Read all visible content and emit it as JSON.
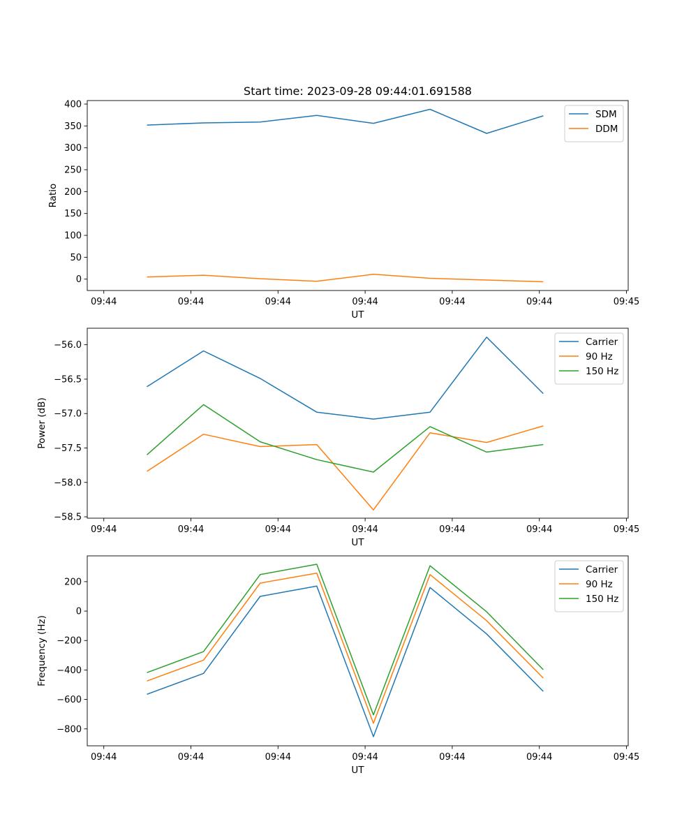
{
  "figure": {
    "title": "Start time: 2023-09-28 09:44:01.691588"
  },
  "colors": {
    "blue": "#1f77b4",
    "orange": "#ff7f0e",
    "green": "#2ca02c"
  },
  "chart_data": [
    {
      "type": "line",
      "title": "Start time: 2023-09-28 09:44:01.691588",
      "xlabel": "UT",
      "ylabel": "Ratio",
      "x_tick_labels": [
        "09:44",
        "09:44",
        "09:44",
        "09:44",
        "09:44",
        "09:44",
        "09:45"
      ],
      "xlim": [
        -0.31,
        5.9
      ],
      "x_ticks": [
        -0.12,
        0.88,
        1.88,
        2.88,
        3.88,
        4.88,
        5.88
      ],
      "x": [
        0.375,
        1.025,
        1.675,
        2.325,
        2.975,
        3.625,
        4.275,
        4.925
      ],
      "ylim": [
        -26,
        408
      ],
      "y_ticks": [
        0,
        50,
        100,
        150,
        200,
        250,
        300,
        350,
        400
      ],
      "y_tick_labels": [
        "0",
        "50",
        "100",
        "150",
        "200",
        "250",
        "300",
        "350",
        "400"
      ],
      "legend": "upper right",
      "series": [
        {
          "name": "SDM",
          "color": "#1f77b4",
          "values": [
            352,
            357,
            359,
            374,
            356,
            388,
            333,
            373
          ]
        },
        {
          "name": "DDM",
          "color": "#ff7f0e",
          "values": [
            5,
            9,
            1,
            -5,
            11,
            2,
            -2,
            -6
          ]
        }
      ]
    },
    {
      "type": "line",
      "xlabel": "UT",
      "ylabel": "Power (dB)",
      "x_tick_labels": [
        "09:44",
        "09:44",
        "09:44",
        "09:44",
        "09:44",
        "09:44",
        "09:45"
      ],
      "xlim": [
        -0.31,
        5.9
      ],
      "x_ticks": [
        -0.12,
        0.88,
        1.88,
        2.88,
        3.88,
        4.88,
        5.88
      ],
      "x": [
        0.375,
        1.025,
        1.675,
        2.325,
        2.975,
        3.625,
        4.275,
        4.925
      ],
      "ylim": [
        -58.52,
        -55.76
      ],
      "y_ticks": [
        -58.5,
        -58.0,
        -57.5,
        -57.0,
        -56.5,
        -56.0
      ],
      "y_tick_labels": [
        "−58.5",
        "−58.0",
        "−57.5",
        "−57.0",
        "−56.5",
        "−56.0"
      ],
      "legend": "upper right",
      "series": [
        {
          "name": "Carrier",
          "color": "#1f77b4",
          "values": [
            -56.61,
            -56.09,
            -56.49,
            -56.98,
            -57.08,
            -56.98,
            -55.89,
            -56.71
          ]
        },
        {
          "name": "90 Hz",
          "color": "#ff7f0e",
          "values": [
            -57.84,
            -57.3,
            -57.48,
            -57.45,
            -58.4,
            -57.28,
            -57.42,
            -57.18
          ]
        },
        {
          "name": "150 Hz",
          "color": "#2ca02c",
          "values": [
            -57.6,
            -56.87,
            -57.41,
            -57.67,
            -57.85,
            -57.19,
            -57.56,
            -57.45
          ]
        }
      ]
    },
    {
      "type": "line",
      "xlabel": "UT",
      "ylabel": "Frequency (Hz)",
      "x_tick_labels": [
        "09:44",
        "09:44",
        "09:44",
        "09:44",
        "09:44",
        "09:44",
        "09:45"
      ],
      "xlim": [
        -0.31,
        5.9
      ],
      "x_ticks": [
        -0.12,
        0.88,
        1.88,
        2.88,
        3.88,
        4.88,
        5.88
      ],
      "x": [
        0.375,
        1.025,
        1.675,
        2.325,
        2.975,
        3.625,
        4.275,
        4.925
      ],
      "ylim": [
        -915,
        375
      ],
      "y_ticks": [
        -800,
        -600,
        -400,
        -200,
        0,
        200
      ],
      "y_tick_labels": [
        "−800",
        "−600",
        "−400",
        "−200",
        "0",
        "200"
      ],
      "legend": "upper right",
      "series": [
        {
          "name": "Carrier",
          "color": "#1f77b4",
          "values": [
            -565,
            -423,
            100,
            170,
            -853,
            160,
            -155,
            -545
          ]
        },
        {
          "name": "90 Hz",
          "color": "#ff7f0e",
          "values": [
            -475,
            -333,
            190,
            258,
            -762,
            248,
            -65,
            -455
          ]
        },
        {
          "name": "150 Hz",
          "color": "#2ca02c",
          "values": [
            -418,
            -275,
            248,
            318,
            -705,
            308,
            -5,
            -398
          ]
        }
      ]
    }
  ]
}
